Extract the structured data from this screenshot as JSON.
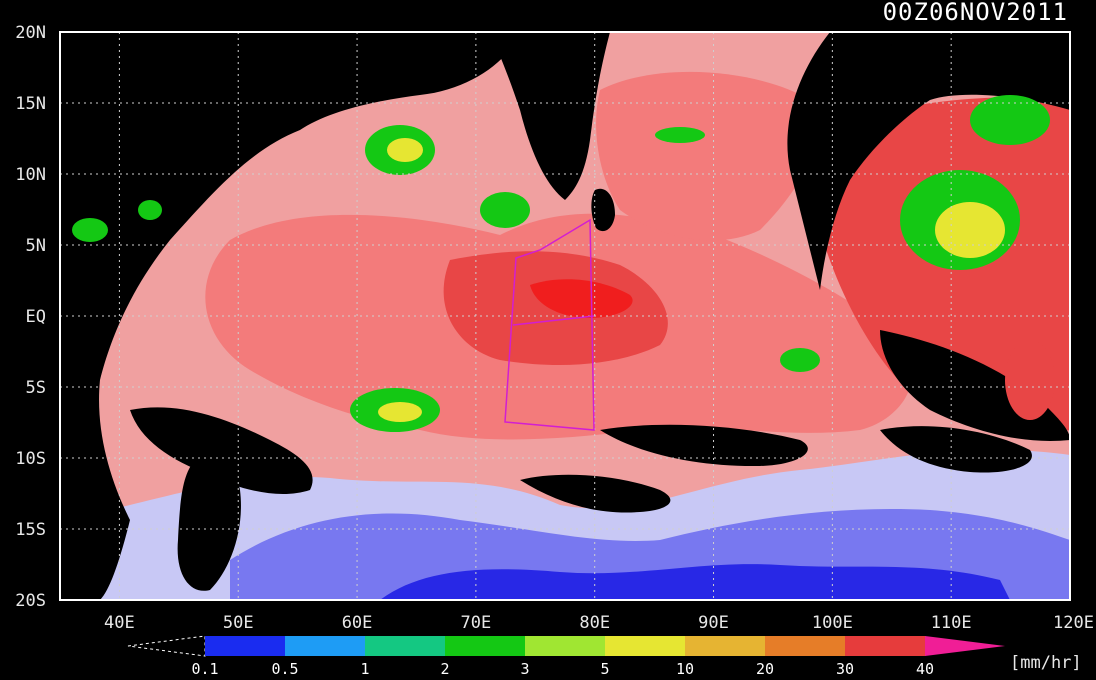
{
  "title": "00Z06NOV2011",
  "map": {
    "lat_labels": [
      "20N",
      "15N",
      "10N",
      "5N",
      "EQ",
      "5S",
      "10S",
      "15S",
      "20S"
    ],
    "lon_labels": [
      "40E",
      "50E",
      "60E",
      "70E",
      "80E",
      "90E",
      "100E",
      "110E",
      "120E"
    ],
    "lat_range": [
      -20,
      20
    ],
    "lon_range": [
      35,
      120
    ],
    "grid": "dotted"
  },
  "colorbar": {
    "unit": "[mm/hr]",
    "ticks": [
      "0.1",
      "0.5",
      "1",
      "2",
      "3",
      "5",
      "10",
      "20",
      "30",
      "40"
    ],
    "colors": [
      "#1a2cf0",
      "#1e9cf5",
      "#14c882",
      "#14c814",
      "#a0e632",
      "#e6e632",
      "#e6b432",
      "#e67d28",
      "#e63c3c",
      "#f01e96"
    ]
  },
  "colors": {
    "ocean_light": "#f0a0a0",
    "ocean_mid": "#f37b7b",
    "ocean_high": "#e84646",
    "ocean_peak": "#f01e1e",
    "cool_light": "#c8c8f5",
    "cool_mid": "#7878f0",
    "cool_deep": "#2828e6",
    "land": "#000000",
    "box": "#d21ed2"
  }
}
